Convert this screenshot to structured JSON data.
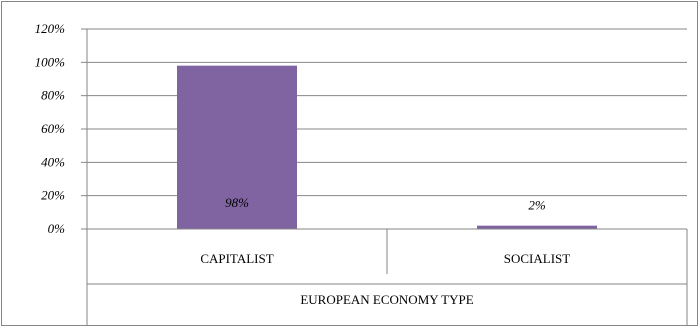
{
  "chart_data": {
    "type": "bar",
    "categories": [
      "CAPITALIST",
      "SOCIALIST"
    ],
    "values": [
      98,
      2
    ],
    "data_labels": [
      "98%",
      "2%"
    ],
    "title": "",
    "xlabel": "EUROPEAN ECONOMY TYPE",
    "ylabel": "",
    "ylim": [
      0,
      120
    ],
    "yticks": [
      "0%",
      "20%",
      "40%",
      "60%",
      "80%",
      "100%",
      "120%"
    ],
    "grid": true,
    "legend": "none",
    "colors": {
      "bar": "#8064A2",
      "grid": "#868686",
      "frame": "#868686"
    }
  }
}
